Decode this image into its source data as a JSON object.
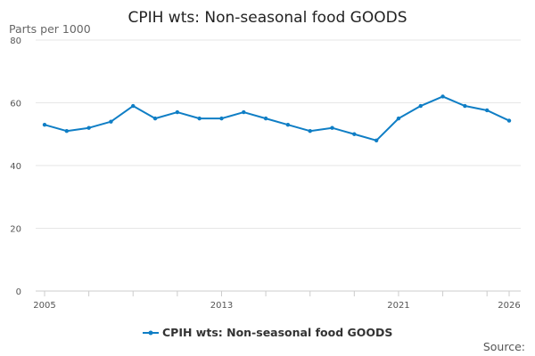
{
  "chart_data": {
    "type": "line",
    "title": "CPIH wts: Non-seasonal food GOODS",
    "ylabel": "Parts per 1000",
    "xlabel": "",
    "ylim": [
      0,
      80
    ],
    "yticks": [
      0,
      20,
      40,
      60,
      80
    ],
    "xticks": [
      2005,
      2013,
      2021,
      2026
    ],
    "grid": true,
    "legend_placement": "bottom",
    "x": [
      2005,
      2006,
      2007,
      2008,
      2009,
      2010,
      2011,
      2012,
      2013,
      2014,
      2015,
      2016,
      2017,
      2018,
      2019,
      2020,
      2021,
      2022,
      2023,
      2024,
      2025,
      2026
    ],
    "series": [
      {
        "name": "CPIH wts: Non-seasonal food GOODS",
        "color": "#0f7ec5",
        "values": [
          53,
          51,
          52,
          54,
          59,
          55,
          57,
          55,
          55,
          57,
          55,
          53,
          51,
          52,
          50,
          48,
          55,
          59,
          62,
          59,
          57.6,
          54.3
        ]
      }
    ]
  },
  "source_label": "Source:"
}
